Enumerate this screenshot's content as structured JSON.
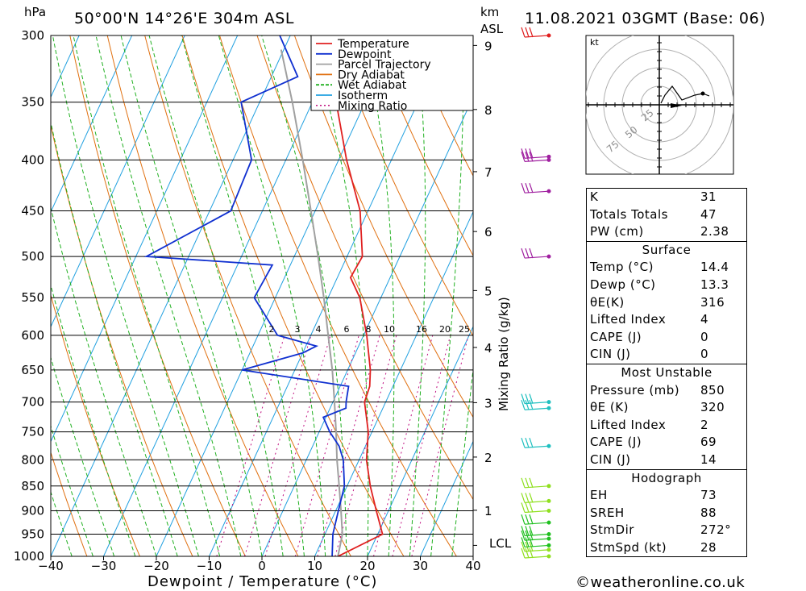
{
  "header": {
    "location": "50°00'N  14°26'E  304m  ASL",
    "datetime": "11.08.2021  03GMT  (Base: 06)",
    "hpa_label": "hPa",
    "km_label": "km",
    "asl_label": "ASL"
  },
  "chart_data": {
    "type": "skew-t",
    "xlabel": "Dewpoint / Temperature (°C)",
    "ylabel_right": "Mixing Ratio (g/kg)",
    "x_ticks": [
      -40,
      -30,
      -20,
      -10,
      0,
      10,
      20,
      30,
      40
    ],
    "xlim": [
      -40,
      40
    ],
    "pressure_levels": [
      300,
      350,
      400,
      450,
      500,
      550,
      600,
      650,
      700,
      750,
      800,
      850,
      900,
      950,
      1000
    ],
    "km_ticks": [
      "9",
      "8",
      "7",
      "6",
      "5",
      "4",
      "3",
      "2",
      "1"
    ],
    "lcl_label": "LCL",
    "mixing_ratio_labels": [
      "2",
      "3",
      "4",
      "6",
      "8",
      "10",
      "16",
      "20",
      "25"
    ],
    "legend": [
      {
        "name": "Temperature",
        "color": "#e02020"
      },
      {
        "name": "Dewpoint",
        "color": "#1030d0"
      },
      {
        "name": "Parcel Trajectory",
        "color": "#a0a0a0"
      },
      {
        "name": "Dry Adiabat",
        "color": "#e07010"
      },
      {
        "name": "Wet Adiabat",
        "color": "#20b020"
      },
      {
        "name": "Isotherm",
        "color": "#20a0e0"
      },
      {
        "name": "Mixing Ratio",
        "color": "#c01080"
      }
    ],
    "series": [
      {
        "name": "Temperature",
        "points": [
          [
            1000,
            14.4
          ],
          [
            950,
            20.9
          ],
          [
            900,
            17.7
          ],
          [
            850,
            14.4
          ],
          [
            800,
            11.4
          ],
          [
            750,
            9.3
          ],
          [
            700,
            6.0
          ],
          [
            675,
            5.6
          ],
          [
            650,
            4.3
          ],
          [
            600,
            0.6
          ],
          [
            550,
            -4.0
          ],
          [
            525,
            -7.5
          ],
          [
            500,
            -7.1
          ],
          [
            450,
            -11.5
          ],
          [
            400,
            -18.5
          ],
          [
            350,
            -25.5
          ],
          [
            300,
            -33.2
          ]
        ]
      },
      {
        "name": "Dewpoint",
        "points": [
          [
            1000,
            13.3
          ],
          [
            950,
            11.5
          ],
          [
            900,
            10.5
          ],
          [
            850,
            9.5
          ],
          [
            800,
            7.0
          ],
          [
            775,
            5.0
          ],
          [
            750,
            2.0
          ],
          [
            725,
            -0.5
          ],
          [
            710,
            3.0
          ],
          [
            700,
            2.5
          ],
          [
            675,
            1.6
          ],
          [
            650,
            -20.0
          ],
          [
            625,
            -10.0
          ],
          [
            615,
            -8.0
          ],
          [
            600,
            -16.3
          ],
          [
            550,
            -24.0
          ],
          [
            510,
            -23.4
          ],
          [
            500,
            -48.0
          ],
          [
            450,
            -36.0
          ],
          [
            400,
            -36.5
          ],
          [
            350,
            -43.5
          ],
          [
            330,
            -35.0
          ],
          [
            300,
            -42.0
          ]
        ]
      },
      {
        "name": "Parcel Trajectory",
        "points": [
          [
            1000,
            14.4
          ],
          [
            950,
            13.3
          ],
          [
            900,
            11.0
          ],
          [
            850,
            8.5
          ],
          [
            800,
            5.8
          ],
          [
            750,
            3.2
          ],
          [
            700,
            0.3
          ],
          [
            650,
            -2.9
          ],
          [
            600,
            -6.7
          ],
          [
            550,
            -10.8
          ],
          [
            500,
            -15.5
          ],
          [
            450,
            -20.8
          ],
          [
            400,
            -26.8
          ],
          [
            350,
            -33.8
          ],
          [
            310,
            -40.5
          ]
        ]
      }
    ],
    "wind_barbs": [
      {
        "p": 1000,
        "color": "#90e020"
      },
      {
        "p": 985,
        "color": "#90e020"
      },
      {
        "p": 975,
        "color": "#20c020"
      },
      {
        "p": 960,
        "color": "#20c020"
      },
      {
        "p": 950,
        "color": "#20c020"
      },
      {
        "p": 925,
        "color": "#20c020"
      },
      {
        "p": 900,
        "color": "#90e020"
      },
      {
        "p": 880,
        "color": "#90e020"
      },
      {
        "p": 850,
        "color": "#90e020"
      },
      {
        "p": 775,
        "color": "#20c0c0"
      },
      {
        "p": 710,
        "color": "#20c0c0"
      },
      {
        "p": 700,
        "color": "#20c0c0"
      },
      {
        "p": 500,
        "color": "#a020a0"
      },
      {
        "p": 430,
        "color": "#a020a0"
      },
      {
        "p": 400,
        "color": "#a020a0"
      },
      {
        "p": 397,
        "color": "#a020a0"
      },
      {
        "p": 300,
        "color": "#e02020"
      }
    ]
  },
  "hodograph": {
    "unit_label": "kt",
    "ring_labels": [
      "25",
      "50",
      "75"
    ]
  },
  "indices": {
    "k_label": "K",
    "k_value": "31",
    "tt_label": "Totals Totals",
    "tt_value": "47",
    "pw_label": "PW (cm)",
    "pw_value": "2.38"
  },
  "surface": {
    "title": "Surface",
    "temp_label": "Temp (°C)",
    "temp_value": "14.4",
    "dewp_label": "Dewp (°C)",
    "dewp_value": "13.3",
    "theta_label": "θE(K)",
    "theta_value": "316",
    "li_label": "Lifted Index",
    "li_value": "4",
    "cape_label": "CAPE (J)",
    "cape_value": "0",
    "cin_label": "CIN (J)",
    "cin_value": "0"
  },
  "most_unstable": {
    "title": "Most Unstable",
    "pressure_label": "Pressure (mb)",
    "pressure_value": "850",
    "theta_label": "θE (K)",
    "theta_value": "320",
    "li_label": "Lifted Index",
    "li_value": "2",
    "cape_label": "CAPE (J)",
    "cape_value": "69",
    "cin_label": "CIN (J)",
    "cin_value": "14"
  },
  "hodo_stats": {
    "title": "Hodograph",
    "eh_label": "EH",
    "eh_value": "73",
    "sreh_label": "SREH",
    "sreh_value": "88",
    "stmdir_label": "StmDir",
    "stmdir_value": "272°",
    "stmspd_label": "StmSpd (kt)",
    "stmspd_value": "28"
  },
  "footer": {
    "copyright": "©weatheronline.co.uk"
  }
}
